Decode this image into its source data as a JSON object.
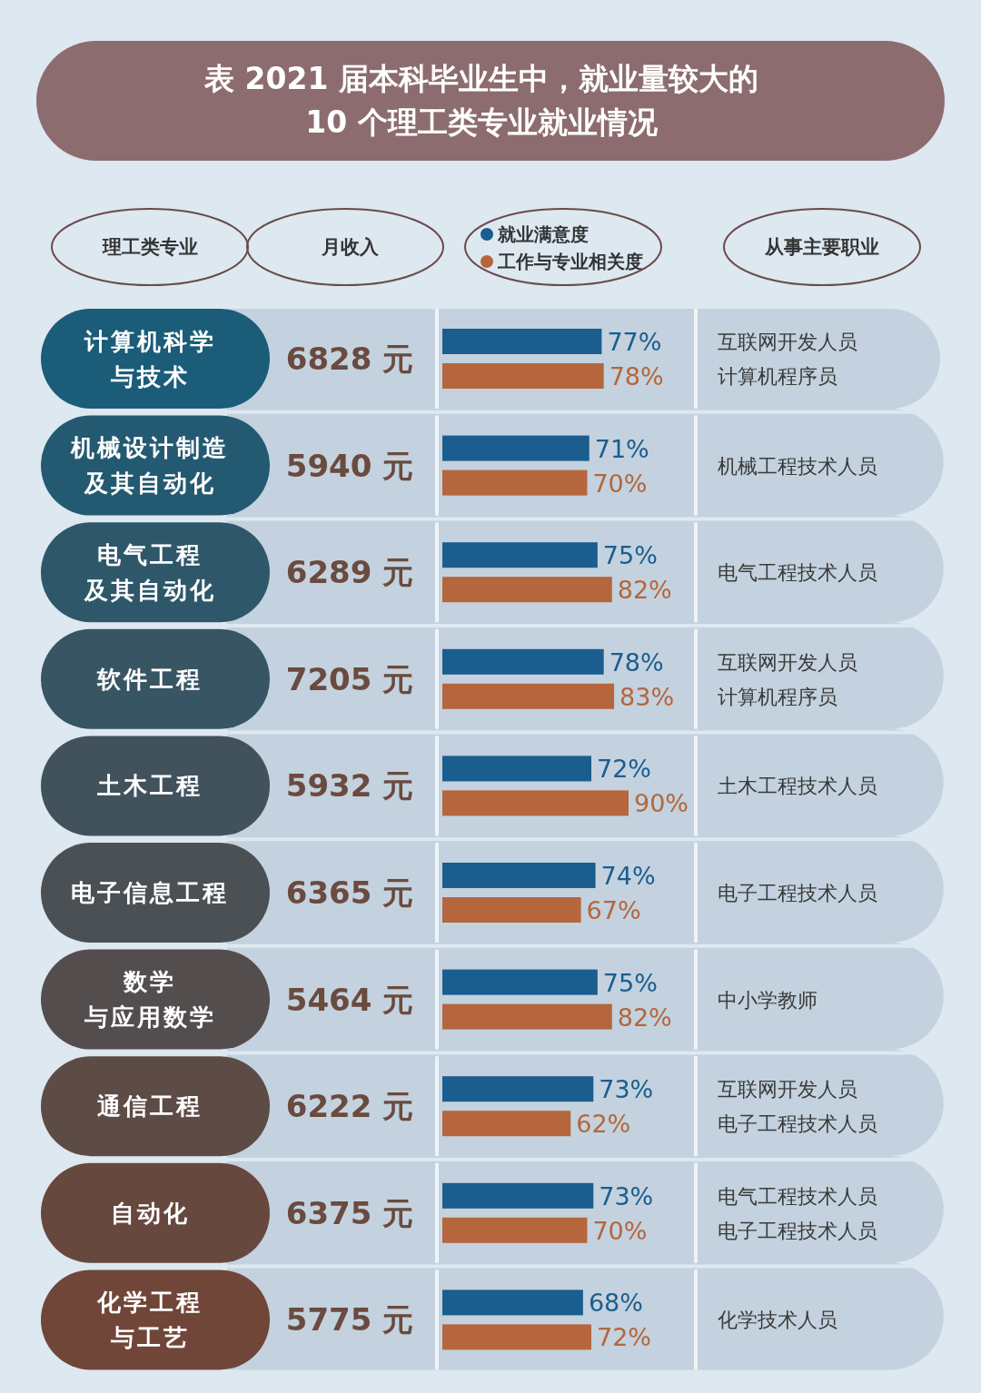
{
  "chart_data": [
    {
      "type": "bar",
      "orientation": "horizontal",
      "legend": "top",
      "title": "表 2021 届本科毕业生中，就业量较大的\n10 个理工类专业就业情况",
      "categories": [
        "计算机科学与技术",
        "机械设计制造及其自动化",
        "电气工程及其自动化",
        "软件工程",
        "土木工程",
        "电子信息工程",
        "数学与应用数学",
        "通信工程",
        "自动化",
        "化学工程与工艺"
      ],
      "series": [
        {
          "name": "就业满意度",
          "color": "#1b5d8f",
          "values": [
            77,
            71,
            75,
            78,
            72,
            74,
            75,
            73,
            73,
            68
          ],
          "value_labels": [
            "77%",
            "71%",
            "75%",
            "78%",
            "72%",
            "74%",
            "75%",
            "73%",
            "73%",
            "68%"
          ]
        },
        {
          "name": "工作与专业相关度",
          "color": "#b5663c",
          "values": [
            78,
            70,
            82,
            83,
            90,
            67,
            82,
            62,
            70,
            72
          ],
          "value_labels": [
            "78%",
            "70%",
            "82%",
            "83%",
            "90%",
            "67%",
            "82%",
            "62%",
            "70%",
            "72%"
          ]
        }
      ],
      "annotations": [
        "理工类专业"
      ]
    },
    {
      "type": "other",
      "title": "月收入",
      "annotations": [
        "6828 元",
        "5940 元",
        "6289 元",
        "7205 元",
        "5932 元",
        "6365 元",
        "5464 元",
        "6222 元",
        "6375 元",
        "5775 元"
      ]
    },
    {
      "type": "other",
      "title": "从事主要职业",
      "annotations": [
        "互联网开发人员",
        "机械工程技术人员",
        "电气工程技术人员",
        "互联网开发人员",
        "土木工程技术人员",
        "电子工程技术人员",
        "中小学教师",
        "互联网开发人员",
        "电气工程技术人员",
        "化学技术人员"
      ]
    },
    {
      "type": "other",
      "annotations": [
        "计算机程序员",
        null,
        null,
        "计算机程序员",
        null,
        null,
        null,
        "电子工程技术人员",
        "电子工程技术人员",
        null
      ]
    }
  ]
}
